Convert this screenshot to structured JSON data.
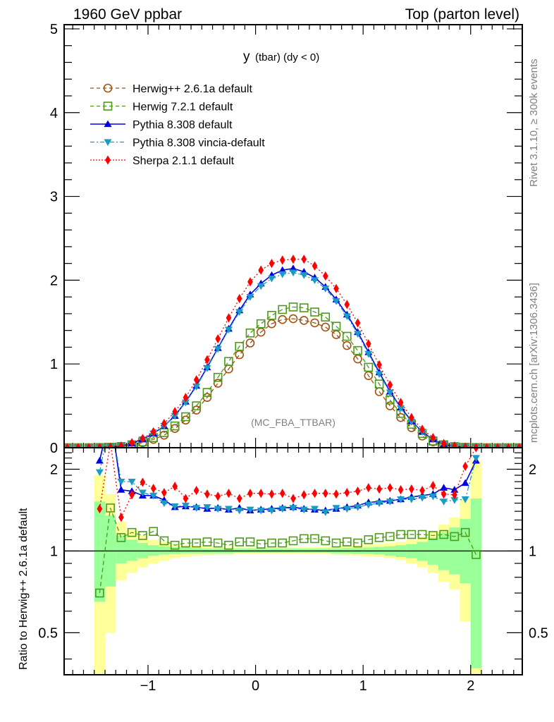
{
  "header": {
    "left": "1960 GeV ppbar",
    "right": "Top (parton level)"
  },
  "side_labels": {
    "rivet": "Rivet 3.1.10, ≥ 300k events",
    "mcplots": "mcplots.cern.ch [arXiv:1306.3436]"
  },
  "chart_data": [
    {
      "type": "line",
      "panel": "main",
      "title": "y (tbar) (dy < 0)",
      "title_main": "y",
      "title_rest": "(tbar) (dy < 0)",
      "analysis_tag": "(MC_FBA_TTBAR)",
      "xlabel": "",
      "ylabel": "",
      "xlim": [
        -1.78,
        2.48
      ],
      "ylim": [
        0,
        5.05
      ],
      "x_ticks": [
        -1,
        0,
        1,
        2
      ],
      "x_tick_labels": [
        "−1",
        "0",
        "1",
        "2"
      ],
      "y_ticks": [
        0,
        1,
        2,
        3,
        4,
        5
      ],
      "y_tick_labels": [
        "0",
        "1",
        "2",
        "3",
        "4",
        "5"
      ],
      "grid": false,
      "legend_position": "top-left",
      "x": [
        -1.75,
        -1.65,
        -1.55,
        -1.45,
        -1.35,
        -1.25,
        -1.15,
        -1.05,
        -0.95,
        -0.85,
        -0.75,
        -0.65,
        -0.55,
        -0.45,
        -0.35,
        -0.25,
        -0.15,
        -0.05,
        0.05,
        0.15,
        0.25,
        0.35,
        0.45,
        0.55,
        0.65,
        0.75,
        0.85,
        0.95,
        1.05,
        1.15,
        1.25,
        1.35,
        1.45,
        1.55,
        1.65,
        1.75,
        1.85,
        1.95,
        2.05,
        2.15,
        2.25,
        2.35,
        2.45
      ],
      "series": [
        {
          "name": "Herwig++ 2.6.1a default",
          "color": "#a0520f",
          "marker": "circle-open",
          "line": "dashed",
          "values": [
            0.0,
            0.0,
            0.0,
            0.002,
            0.005,
            0.012,
            0.03,
            0.06,
            0.1,
            0.15,
            0.23,
            0.33,
            0.45,
            0.6,
            0.77,
            0.94,
            1.11,
            1.25,
            1.38,
            1.48,
            1.53,
            1.54,
            1.52,
            1.49,
            1.44,
            1.35,
            1.22,
            1.06,
            0.86,
            0.67,
            0.5,
            0.36,
            0.24,
            0.14,
            0.07,
            0.03,
            0.01,
            0.004,
            0.002,
            0.0,
            0.0,
            0.0,
            0.0
          ]
        },
        {
          "name": "Herwig 7.2.1 default",
          "color": "#4c9a1a",
          "marker": "square-open",
          "line": "dashed",
          "values": [
            0.0,
            0.0,
            0.0,
            0.002,
            0.006,
            0.014,
            0.035,
            0.07,
            0.12,
            0.18,
            0.26,
            0.37,
            0.5,
            0.66,
            0.84,
            1.03,
            1.21,
            1.37,
            1.48,
            1.58,
            1.65,
            1.68,
            1.67,
            1.62,
            1.56,
            1.45,
            1.33,
            1.16,
            0.96,
            0.76,
            0.57,
            0.41,
            0.28,
            0.17,
            0.08,
            0.035,
            0.013,
            0.005,
            0.002,
            0.0,
            0.0,
            0.0,
            0.0
          ]
        },
        {
          "name": "Pythia 8.308 default",
          "color": "#0000e0",
          "marker": "triangle-up",
          "line": "solid",
          "values": [
            0.0,
            0.0,
            0.0,
            0.003,
            0.009,
            0.02,
            0.05,
            0.1,
            0.17,
            0.26,
            0.38,
            0.55,
            0.74,
            0.96,
            1.19,
            1.42,
            1.64,
            1.83,
            1.96,
            2.06,
            2.12,
            2.14,
            2.1,
            2.03,
            1.92,
            1.77,
            1.59,
            1.38,
            1.14,
            0.9,
            0.67,
            0.48,
            0.32,
            0.19,
            0.1,
            0.04,
            0.015,
            0.006,
            0.002,
            0.0,
            0.0,
            0.0,
            0.0
          ]
        },
        {
          "name": "Pythia 8.308 vincia-default",
          "color": "#1a9bc4",
          "marker": "triangle-down",
          "line": "dashdot",
          "values": [
            0.0,
            0.0,
            0.0,
            0.003,
            0.009,
            0.02,
            0.05,
            0.1,
            0.17,
            0.26,
            0.38,
            0.54,
            0.73,
            0.95,
            1.18,
            1.41,
            1.62,
            1.8,
            1.93,
            2.02,
            2.07,
            2.09,
            2.06,
            2.0,
            1.9,
            1.75,
            1.57,
            1.36,
            1.12,
            0.88,
            0.66,
            0.47,
            0.31,
            0.19,
            0.1,
            0.04,
            0.015,
            0.006,
            0.002,
            0.0,
            0.0,
            0.0,
            0.0
          ]
        },
        {
          "name": "Sherpa 2.1.1 default",
          "color": "#ff0000",
          "marker": "diamond",
          "line": "dotted",
          "values": [
            0.0,
            0.0,
            0.0,
            0.002,
            0.008,
            0.02,
            0.06,
            0.11,
            0.19,
            0.29,
            0.43,
            0.6,
            0.81,
            1.05,
            1.3,
            1.55,
            1.78,
            1.98,
            2.12,
            2.2,
            2.24,
            2.25,
            2.25,
            2.17,
            2.05,
            1.9,
            1.71,
            1.49,
            1.24,
            0.99,
            0.75,
            0.54,
            0.36,
            0.22,
            0.12,
            0.05,
            0.02,
            0.007,
            0.002,
            0.0,
            0.0,
            0.0,
            0.0
          ]
        }
      ]
    },
    {
      "type": "line",
      "panel": "ratio",
      "ylabel": "Ratio to Herwig++ 2.6.1a default",
      "yscale": "log",
      "xlim": [
        -1.78,
        2.48
      ],
      "ylim": [
        0.35,
        2.4
      ],
      "y_ticks": [
        0.5,
        1,
        2
      ],
      "y_tick_labels": [
        "0.5",
        "1",
        "2"
      ],
      "reference_line": 1,
      "x": [
        -1.45,
        -1.35,
        -1.25,
        -1.15,
        -1.05,
        -0.95,
        -0.85,
        -0.75,
        -0.65,
        -0.55,
        -0.45,
        -0.35,
        -0.25,
        -0.15,
        -0.05,
        0.05,
        0.15,
        0.25,
        0.35,
        0.45,
        0.55,
        0.65,
        0.75,
        0.85,
        0.95,
        1.05,
        1.15,
        1.25,
        1.35,
        1.45,
        1.55,
        1.65,
        1.75,
        1.85,
        1.95,
        2.05
      ],
      "band_edges": [
        -1.5,
        -1.4,
        -1.3,
        -1.2,
        -1.1,
        -1.0,
        -0.9,
        -0.8,
        -0.7,
        -0.6,
        -0.5,
        -0.4,
        -0.3,
        -0.2,
        -0.1,
        0.0,
        0.1,
        0.2,
        0.3,
        0.4,
        0.5,
        0.6,
        0.7,
        0.8,
        0.9,
        1.0,
        1.1,
        1.2,
        1.3,
        1.4,
        1.5,
        1.6,
        1.7,
        1.8,
        1.9,
        2.0,
        2.1
      ],
      "band_stat_green": {
        "upper": [
          1.52,
          1.35,
          1.14,
          1.1,
          1.07,
          1.05,
          1.04,
          1.035,
          1.03,
          1.025,
          1.02,
          1.02,
          1.02,
          1.02,
          1.02,
          1.02,
          1.02,
          1.02,
          1.02,
          1.02,
          1.02,
          1.02,
          1.02,
          1.025,
          1.025,
          1.03,
          1.035,
          1.04,
          1.05,
          1.06,
          1.08,
          1.12,
          1.17,
          1.22,
          1.31,
          1.56
        ],
        "lower": [
          0.65,
          0.74,
          0.9,
          0.92,
          0.94,
          0.96,
          0.97,
          0.975,
          0.98,
          0.98,
          0.98,
          0.98,
          0.98,
          0.985,
          0.985,
          0.985,
          0.985,
          0.985,
          0.985,
          0.985,
          0.985,
          0.985,
          0.98,
          0.98,
          0.975,
          0.975,
          0.97,
          0.96,
          0.95,
          0.94,
          0.92,
          0.89,
          0.85,
          0.82,
          0.76,
          0.37
        ]
      },
      "band_total_yellow": {
        "upper": [
          1.9,
          1.62,
          1.28,
          1.2,
          1.14,
          1.1,
          1.08,
          1.06,
          1.05,
          1.045,
          1.04,
          1.035,
          1.035,
          1.03,
          1.03,
          1.03,
          1.03,
          1.03,
          1.03,
          1.035,
          1.035,
          1.035,
          1.04,
          1.045,
          1.05,
          1.055,
          1.06,
          1.07,
          1.08,
          1.1,
          1.13,
          1.18,
          1.25,
          1.33,
          1.55,
          2.15
        ],
        "lower": [
          0.35,
          0.5,
          0.78,
          0.83,
          0.87,
          0.9,
          0.92,
          0.94,
          0.95,
          0.96,
          0.965,
          0.97,
          0.97,
          0.975,
          0.975,
          0.975,
          0.975,
          0.975,
          0.975,
          0.975,
          0.975,
          0.975,
          0.97,
          0.965,
          0.96,
          0.955,
          0.95,
          0.94,
          0.925,
          0.9,
          0.87,
          0.83,
          0.77,
          0.72,
          0.55,
          0.35
        ]
      },
      "series": [
        {
          "name": "Herwig 7.2.1 default",
          "color": "#4c9a1a",
          "marker": "square-open",
          "line": "dashed",
          "values": [
            0.7,
            1.44,
            1.12,
            1.17,
            1.14,
            1.18,
            1.09,
            1.05,
            1.07,
            1.07,
            1.08,
            1.07,
            1.05,
            1.08,
            1.08,
            1.06,
            1.07,
            1.07,
            1.09,
            1.11,
            1.11,
            1.09,
            1.07,
            1.08,
            1.07,
            1.1,
            1.12,
            1.13,
            1.15,
            1.15,
            1.15,
            1.14,
            1.15,
            1.13,
            1.17,
            0.97
          ]
        },
        {
          "name": "Pythia 8.308 default",
          "color": "#0000e0",
          "marker": "triangle-up",
          "line": "solid",
          "values": [
            2.15,
            3.2,
            1.68,
            1.66,
            1.6,
            1.6,
            1.54,
            1.45,
            1.46,
            1.45,
            1.43,
            1.44,
            1.42,
            1.44,
            1.41,
            1.42,
            1.43,
            1.44,
            1.45,
            1.43,
            1.42,
            1.41,
            1.43,
            1.45,
            1.47,
            1.51,
            1.52,
            1.53,
            1.55,
            1.58,
            1.6,
            1.62,
            1.71,
            1.68,
            1.78,
            2.15
          ]
        },
        {
          "name": "Pythia 8.308 vincia-default",
          "color": "#1a9bc4",
          "marker": "triangle-down",
          "line": "dashdot",
          "values": [
            1.95,
            3.1,
            1.8,
            1.8,
            1.64,
            1.6,
            1.5,
            1.46,
            1.47,
            1.44,
            1.45,
            1.43,
            1.43,
            1.41,
            1.42,
            1.41,
            1.41,
            1.43,
            1.44,
            1.42,
            1.43,
            1.39,
            1.44,
            1.43,
            1.45,
            1.48,
            1.5,
            1.52,
            1.55,
            1.55,
            1.57,
            1.59,
            1.52,
            1.54,
            1.55,
            2.2
          ]
        },
        {
          "name": "Sherpa 2.1.1 default",
          "color": "#ff0000",
          "marker": "diamond",
          "line": "dotted",
          "values": [
            1.43,
            2.5,
            1.33,
            1.61,
            1.79,
            1.7,
            1.64,
            1.73,
            1.56,
            1.67,
            1.62,
            1.59,
            1.63,
            1.56,
            1.63,
            1.63,
            1.62,
            1.63,
            1.56,
            1.61,
            1.63,
            1.63,
            1.62,
            1.64,
            1.66,
            1.71,
            1.69,
            1.71,
            1.68,
            1.69,
            1.67,
            1.74,
            1.62,
            1.61,
            2.05,
            2.4
          ]
        }
      ]
    }
  ]
}
